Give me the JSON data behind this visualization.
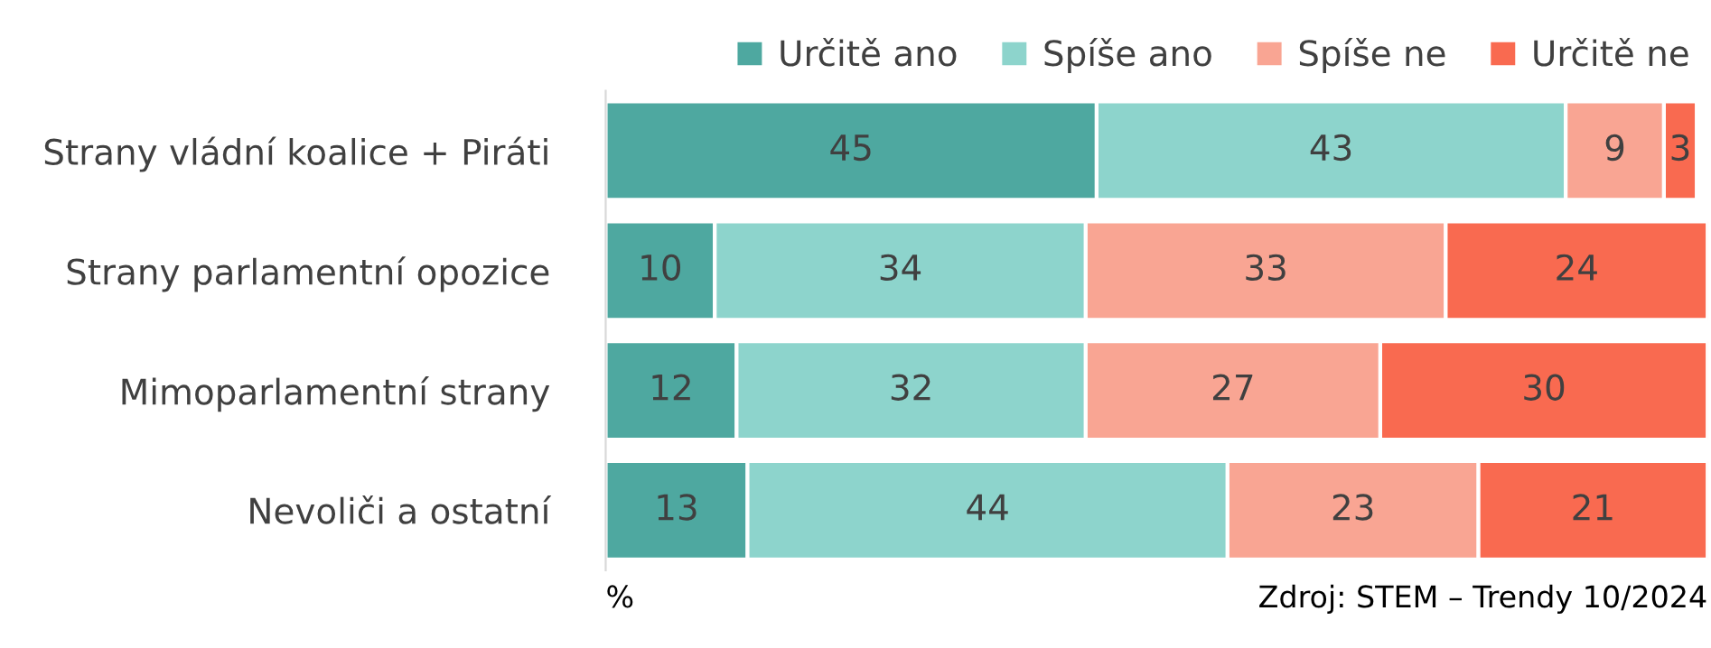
{
  "chart_data": {
    "type": "bar",
    "orientation": "horizontal",
    "stacked": true,
    "data_labels": true,
    "legend": "top right",
    "grid": false,
    "tick_labels": "y",
    "categories": [
      "Strany vládní koalice + Piráti",
      "Strany parlamentní opozice",
      "Mimoparlamentní strany",
      "Nevoliči a ostatní"
    ],
    "xlim": [
      0,
      101
    ],
    "series": [
      {
        "name": "Určitě ano",
        "color": "#4ea8a0",
        "values": [
          45,
          10,
          12,
          13
        ]
      },
      {
        "name": "Spíše ano",
        "color": "#8dd4cc",
        "values": [
          43,
          34,
          32,
          44
        ]
      },
      {
        "name": "Spíše ne",
        "color": "#f9a593",
        "values": [
          9,
          33,
          27,
          23
        ]
      },
      {
        "name": "Určitě ne",
        "color": "#f96a50",
        "values": [
          3,
          24,
          30,
          21
        ]
      }
    ],
    "annotations": [
      "%",
      "Zdroj: STEM – Trendy 10/2024"
    ]
  }
}
